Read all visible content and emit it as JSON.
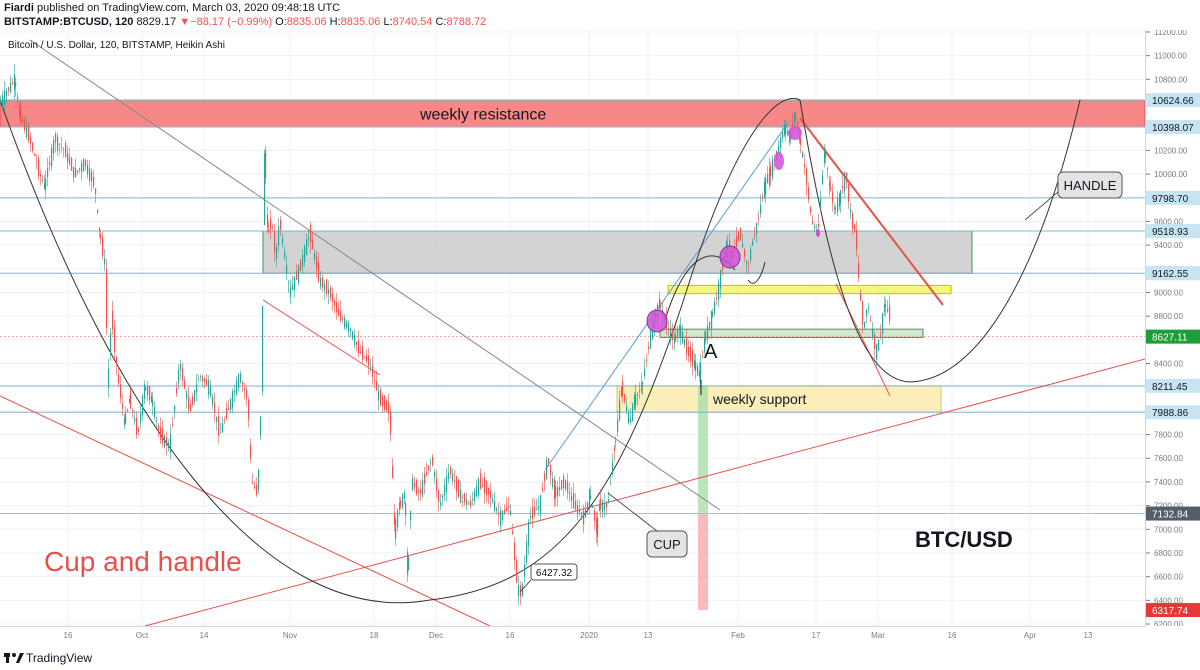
{
  "header": {
    "author": "Fiardi",
    "publish_text": "published on TradingView.com, March 03, 2020 09:48:18 UTC",
    "symbol": "BITSTAMP:BTCUSD, 120",
    "last": "8829.17",
    "change_arrow": "▼",
    "change": "−88.17 (−0.99%)",
    "o_label": "O:",
    "o_val": "8835.06",
    "h_label": "H:",
    "h_val": "8835.06",
    "l_label": "L:",
    "l_val": "8740.54",
    "c_label": "C:",
    "c_val": "8788.72"
  },
  "chart_title": "Bitcoin / U.S. Dollar, 120, BITSTAMP, Heikin Ashi",
  "footer": {
    "brand": "TradingView"
  },
  "colors": {
    "resistance_fill": "#f77a7a",
    "support_fill": "#fbeeb8",
    "zone_gray": "#c8c8c8",
    "candle_up": "#26a69a",
    "candle_down": "#ef5350",
    "trend_red": "#e5524a",
    "curve": "#333333",
    "marker": "#d34fd8",
    "highlight_yellow": "#f3f77a",
    "current_price": "#1e9d3b",
    "low_label": "#e53935",
    "dark_label": "#555d6b"
  },
  "chart_data": {
    "type": "candlestick",
    "style": "Heikin Ashi",
    "instrument": "Bitcoin / U.S. Dollar",
    "timeframe": "120",
    "exchange": "BITSTAMP",
    "ylim": [
      6200,
      11200
    ],
    "y_ticks": [
      6200,
      6400,
      6600,
      6800,
      7000,
      7200,
      7400,
      7600,
      7800,
      8000,
      8200,
      8400,
      8600,
      8800,
      9000,
      9200,
      9400,
      9600,
      9800,
      10000,
      10200,
      10400,
      10600,
      10800,
      11000,
      11200
    ],
    "x_ticks": [
      "16",
      "Oct",
      "14",
      "Nov",
      "18",
      "Dec",
      "16",
      "2020",
      "13",
      "Feb",
      "17",
      "Mar",
      "16",
      "Apr",
      "13"
    ],
    "price_levels": [
      {
        "label": "10624.66",
        "value": 10624.66,
        "style": "blue"
      },
      {
        "label": "10398.07",
        "value": 10398.07,
        "style": "blue"
      },
      {
        "label": "9798.70",
        "value": 9798.7,
        "style": "blue"
      },
      {
        "label": "9518.93",
        "value": 9518.93,
        "style": "blue"
      },
      {
        "label": "9162.55",
        "value": 9162.55,
        "style": "blue"
      },
      {
        "label": "8627.11",
        "value": 8627.11,
        "style": "current"
      },
      {
        "label": "8211.45",
        "value": 8211.45,
        "style": "blue"
      },
      {
        "label": "7988.86",
        "value": 7988.86,
        "style": "blue"
      },
      {
        "label": "7132.84",
        "value": 7132.84,
        "style": "dark"
      },
      {
        "label": "6317.74",
        "value": 6317.74,
        "style": "low"
      }
    ],
    "price_path": [
      [
        0,
        10600
      ],
      [
        15,
        10800
      ],
      [
        20,
        10500
      ],
      [
        30,
        10300
      ],
      [
        40,
        10000
      ],
      [
        45,
        9900
      ],
      [
        55,
        10300
      ],
      [
        65,
        10200
      ],
      [
        75,
        10000
      ],
      [
        85,
        10100
      ],
      [
        95,
        9900
      ],
      [
        100,
        9500
      ],
      [
        106,
        9200
      ],
      [
        108,
        8200
      ],
      [
        112,
        8800
      ],
      [
        118,
        8300
      ],
      [
        125,
        7900
      ],
      [
        130,
        8100
      ],
      [
        138,
        7800
      ],
      [
        145,
        8200
      ],
      [
        152,
        8100
      ],
      [
        160,
        7800
      ],
      [
        170,
        7700
      ],
      [
        180,
        8400
      ],
      [
        190,
        8000
      ],
      [
        200,
        8300
      ],
      [
        210,
        8200
      ],
      [
        220,
        7800
      ],
      [
        232,
        8100
      ],
      [
        240,
        8300
      ],
      [
        248,
        8100
      ],
      [
        252,
        7400
      ],
      [
        258,
        7300
      ],
      [
        262,
        8200
      ],
      [
        265,
        10200
      ],
      [
        268,
        9500
      ],
      [
        272,
        9600
      ],
      [
        276,
        9300
      ],
      [
        280,
        9600
      ],
      [
        290,
        9000
      ],
      [
        300,
        9200
      ],
      [
        310,
        9500
      ],
      [
        320,
        9100
      ],
      [
        330,
        9000
      ],
      [
        340,
        8800
      ],
      [
        350,
        8700
      ],
      [
        360,
        8500
      ],
      [
        370,
        8400
      ],
      [
        380,
        8100
      ],
      [
        390,
        8000
      ],
      [
        395,
        7000
      ],
      [
        400,
        7200
      ],
      [
        405,
        7300
      ],
      [
        408,
        6600
      ],
      [
        412,
        7400
      ],
      [
        420,
        7300
      ],
      [
        432,
        7600
      ],
      [
        440,
        7200
      ],
      [
        450,
        7500
      ],
      [
        460,
        7300
      ],
      [
        470,
        7200
      ],
      [
        480,
        7400
      ],
      [
        490,
        7300
      ],
      [
        500,
        7100
      ],
      [
        510,
        7200
      ],
      [
        518,
        6500
      ],
      [
        522,
        6450
      ],
      [
        530,
        7100
      ],
      [
        540,
        7200
      ],
      [
        548,
        7600
      ],
      [
        555,
        7300
      ],
      [
        565,
        7400
      ],
      [
        575,
        7200
      ],
      [
        585,
        7100
      ],
      [
        590,
        7300
      ],
      [
        597,
        7000
      ],
      [
        600,
        7200
      ],
      [
        608,
        7200
      ],
      [
        615,
        7700
      ],
      [
        622,
        8200
      ],
      [
        630,
        7900
      ],
      [
        635,
        8100
      ],
      [
        642,
        8200
      ],
      [
        650,
        8600
      ],
      [
        655,
        8800
      ],
      [
        660,
        8900
      ],
      [
        668,
        8700
      ],
      [
        675,
        8600
      ],
      [
        680,
        8700
      ],
      [
        688,
        8500
      ],
      [
        695,
        8400
      ],
      [
        700,
        8300
      ],
      [
        705,
        8600
      ],
      [
        712,
        8800
      ],
      [
        718,
        9000
      ],
      [
        722,
        9200
      ],
      [
        727,
        9400
      ],
      [
        732,
        9300
      ],
      [
        740,
        9500
      ],
      [
        748,
        9200
      ],
      [
        752,
        9400
      ],
      [
        758,
        9600
      ],
      [
        765,
        9900
      ],
      [
        770,
        10000
      ],
      [
        778,
        10200
      ],
      [
        785,
        10400
      ],
      [
        790,
        10300
      ],
      [
        795,
        10500
      ],
      [
        800,
        10300
      ],
      [
        806,
        10000
      ],
      [
        812,
        9600
      ],
      [
        818,
        9500
      ],
      [
        825,
        10200
      ],
      [
        830,
        9900
      ],
      [
        835,
        9700
      ],
      [
        840,
        9800
      ],
      [
        846,
        10000
      ],
      [
        852,
        9600
      ],
      [
        856,
        9500
      ],
      [
        860,
        9000
      ],
      [
        864,
        8700
      ],
      [
        868,
        8900
      ],
      [
        872,
        8700
      ],
      [
        876,
        8500
      ],
      [
        880,
        8600
      ],
      [
        885,
        8900
      ],
      [
        890,
        8800
      ]
    ],
    "annotations": [
      {
        "text": "weekly resistance",
        "type": "zone",
        "y_range": [
          10398.07,
          10624.66
        ]
      },
      {
        "text": "weekly support",
        "type": "zone",
        "y_range": [
          7988.86,
          8211.45
        ]
      },
      {
        "text": "A",
        "type": "label"
      },
      {
        "text": "HANDLE",
        "type": "callout"
      },
      {
        "text": "CUP",
        "type": "callout"
      },
      {
        "text": "6427.32",
        "type": "price-callout",
        "value": 6427.32
      },
      {
        "text": "Cup and handle",
        "type": "title-overlay"
      },
      {
        "text": "BTC/USD",
        "type": "title-overlay"
      }
    ]
  }
}
